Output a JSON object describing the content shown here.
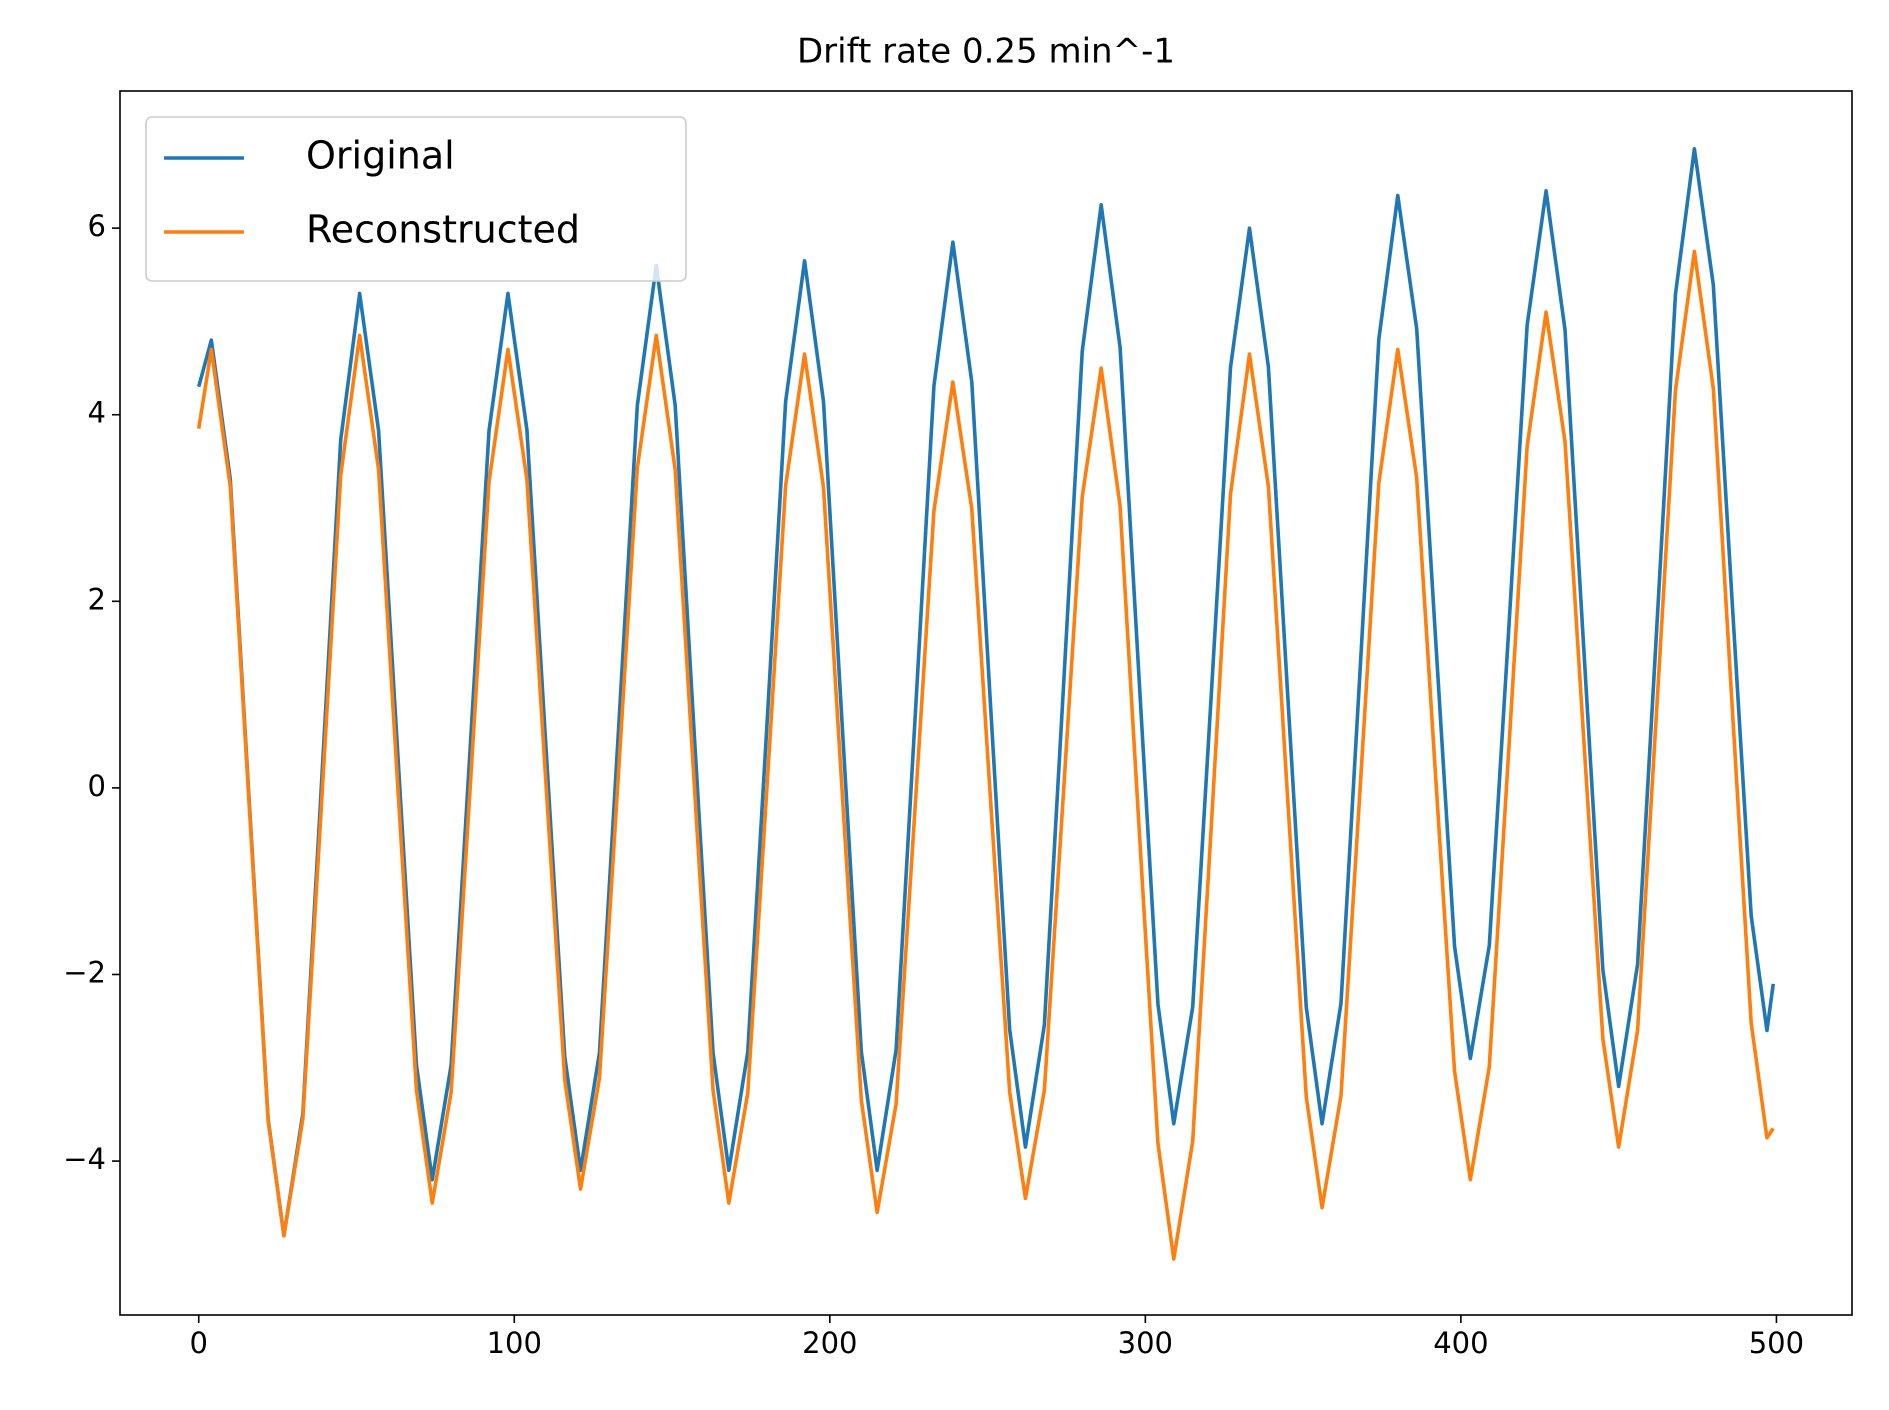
{
  "chart_data": {
    "type": "line",
    "title": "Drift rate 0.25 min^-1",
    "x": [
      0,
      4,
      10,
      16,
      22,
      27,
      33,
      39,
      45,
      51,
      57,
      63,
      69,
      74,
      80,
      86,
      92,
      98,
      104,
      110,
      116,
      121,
      127,
      133,
      139,
      145,
      151,
      157,
      163,
      168,
      174,
      180,
      186,
      192,
      198,
      204,
      210,
      215,
      221,
      227,
      233,
      239,
      245,
      251,
      257,
      262,
      268,
      274,
      280,
      286,
      292,
      298,
      304,
      309,
      315,
      321,
      327,
      333,
      339,
      345,
      351,
      356,
      362,
      368,
      374,
      380,
      386,
      392,
      398,
      403,
      409,
      415,
      421,
      427,
      433,
      439,
      445,
      450,
      456,
      462,
      468,
      474,
      480,
      486,
      492,
      497,
      499
    ],
    "series": [
      {
        "name": "Original",
        "color": "#1f77b4",
        "values": [
          4.3,
          4.8,
          3.31,
          -0.14,
          -3.55,
          -4.8,
          -3.49,
          0.1,
          3.73,
          5.3,
          3.83,
          0.41,
          -2.97,
          -4.2,
          -2.97,
          0.41,
          3.83,
          5.3,
          3.84,
          0.46,
          -2.88,
          -4.1,
          -2.84,
          0.6,
          4.1,
          5.6,
          4.1,
          0.6,
          -2.84,
          -4.1,
          -2.83,
          0.63,
          4.14,
          5.65,
          4.14,
          0.63,
          -2.83,
          -4.1,
          -2.81,
          0.73,
          4.31,
          5.85,
          4.35,
          0.85,
          -2.59,
          -3.85,
          -2.54,
          1.05,
          4.68,
          6.25,
          4.72,
          1.18,
          -2.32,
          -3.6,
          -2.35,
          1.06,
          4.51,
          6.0,
          4.51,
          1.06,
          -2.35,
          -3.6,
          -2.31,
          1.23,
          4.81,
          6.35,
          4.92,
          1.59,
          -1.7,
          -2.9,
          -1.69,
          1.61,
          4.96,
          6.4,
          4.91,
          1.46,
          -1.95,
          -3.2,
          -1.89,
          1.67,
          5.29,
          6.85,
          5.39,
          1.98,
          -1.37,
          -2.6,
          -2.1
        ]
      },
      {
        "name": "Reconstructed",
        "color": "#ff7f0e",
        "values": [
          3.85,
          4.7,
          3.23,
          -0.19,
          -3.57,
          -4.8,
          -3.55,
          -0.12,
          3.35,
          4.85,
          3.41,
          0.06,
          -3.24,
          -4.45,
          -3.26,
          -0.01,
          3.28,
          4.7,
          3.31,
          0.07,
          -3.13,
          -4.3,
          -3.11,
          0.14,
          3.43,
          4.85,
          3.41,
          0.06,
          -3.24,
          -4.45,
          -3.27,
          -0.04,
          3.24,
          4.65,
          3.22,
          -0.09,
          -3.35,
          -4.55,
          -3.39,
          -0.23,
          2.97,
          4.35,
          2.99,
          -0.16,
          -3.26,
          -4.4,
          -3.24,
          -0.08,
          3.12,
          4.5,
          3.02,
          -0.42,
          -3.81,
          -5.05,
          -3.79,
          -0.35,
          3.15,
          4.65,
          3.23,
          -0.06,
          -3.31,
          -4.5,
          -3.3,
          -0.04,
          3.27,
          4.7,
          3.32,
          0.12,
          -3.04,
          -4.2,
          -2.99,
          0.31,
          3.66,
          5.1,
          3.71,
          0.49,
          -2.69,
          -3.85,
          -2.6,
          0.81,
          4.26,
          5.75,
          4.28,
          0.86,
          -2.52,
          -3.75,
          -3.65
        ]
      }
    ],
    "xlim": [
      -24.95,
      523.95
    ],
    "ylim": [
      -5.65,
      7.47
    ],
    "xticks": [
      0,
      100,
      200,
      300,
      400,
      500
    ],
    "yticks": [
      {
        "value": -4,
        "label": "−4"
      },
      {
        "value": -2,
        "label": "−2"
      },
      0,
      2,
      4,
      6
    ],
    "legend": "upper left"
  }
}
